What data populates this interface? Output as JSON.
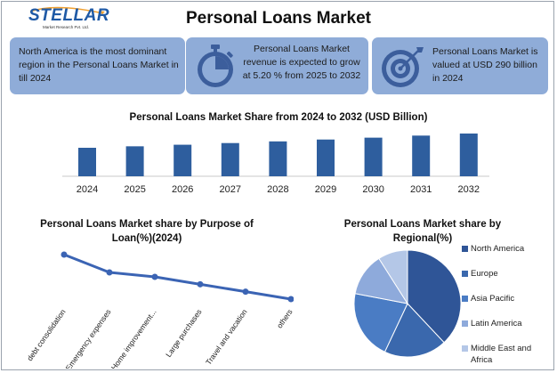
{
  "logo": {
    "name": "STELLAR",
    "tagline": "Market Research Pvt. Ltd."
  },
  "title": "Personal Loans Market",
  "cards": [
    {
      "text": "North America is the most dominant region in the Personal Loans Market in till 2024"
    },
    {
      "text": "Personal Loans Market revenue is expected to grow at 5.20 % from 2025 to 2032",
      "icon": "stopwatch-icon"
    },
    {
      "text": "Personal Loans Market is valued at USD 290 billion in 2024",
      "icon": "target-icon"
    }
  ],
  "colors": {
    "card_bg": "#8facd8",
    "bar": "#2e5e9e",
    "line": "#3b64b4"
  },
  "chart_data": [
    {
      "type": "bar",
      "title": "Personal Loans Market Share from 2024 to 2032 (USD Billion)",
      "categories": [
        "2024",
        "2025",
        "2026",
        "2027",
        "2028",
        "2029",
        "2030",
        "2031",
        "2032"
      ],
      "values": [
        290,
        305,
        321,
        338,
        355,
        374,
        393,
        414,
        435
      ],
      "grid": false
    },
    {
      "type": "line",
      "title": "Personal Loans Market share by Purpose of Loan(%)(2024)",
      "categories": [
        "debt consolidation",
        "Emergency expenses",
        "Home improvement...",
        "Large purchases",
        "Travel and vacation",
        "others"
      ],
      "values": [
        33,
        21,
        18,
        13,
        8,
        3
      ],
      "grid": false
    },
    {
      "type": "pie",
      "title": "Personal Loans Market share by Regional(%)",
      "labels": [
        "North America",
        "Europe",
        "Asia Pacific",
        "Latin America",
        "Middle East and Africa"
      ],
      "values": [
        38,
        19,
        21,
        13,
        9
      ],
      "colors": [
        "#2f5597",
        "#3a68ad",
        "#4a7cc4",
        "#8eaadb",
        "#b4c7e7"
      ],
      "legend": "right"
    }
  ]
}
